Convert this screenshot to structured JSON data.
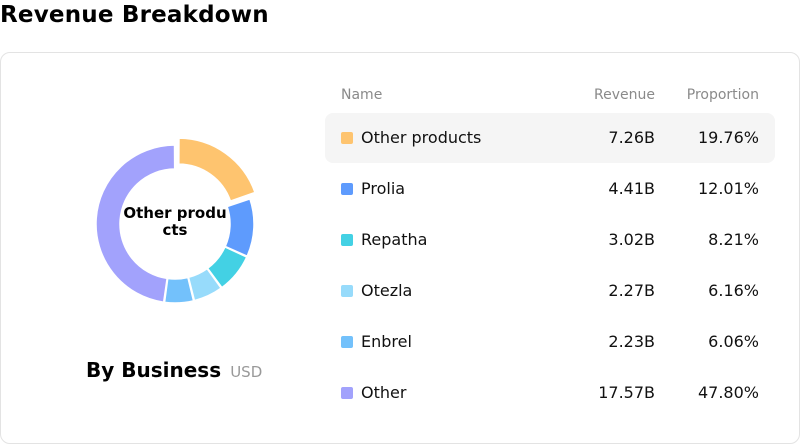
{
  "page": {
    "title": "Revenue Breakdown"
  },
  "chart": {
    "center_label": "Other products",
    "subtitle": "By Business",
    "unit": "USD"
  },
  "table": {
    "headers": {
      "name": "Name",
      "revenue": "Revenue",
      "proportion": "Proportion"
    },
    "rows": [
      {
        "name": "Other products",
        "revenue": "7.26B",
        "proportion": "19.76%",
        "color": "#fec46f",
        "active": true
      },
      {
        "name": "Prolia",
        "revenue": "4.41B",
        "proportion": "12.01%",
        "color": "#5e9bfd",
        "active": false
      },
      {
        "name": "Repatha",
        "revenue": "3.02B",
        "proportion": "8.21%",
        "color": "#43d1e4",
        "active": false
      },
      {
        "name": "Otezla",
        "revenue": "2.27B",
        "proportion": "6.16%",
        "color": "#97dbfb",
        "active": false
      },
      {
        "name": "Enbrel",
        "revenue": "2.23B",
        "proportion": "6.06%",
        "color": "#73c1fb",
        "active": false
      },
      {
        "name": "Other",
        "revenue": "17.57B",
        "proportion": "47.80%",
        "color": "#a2a2fc",
        "active": false
      }
    ]
  },
  "chart_data": {
    "type": "pie",
    "categories": [
      "Other products",
      "Prolia",
      "Repatha",
      "Otezla",
      "Enbrel",
      "Other"
    ],
    "values": [
      19.76,
      12.01,
      8.21,
      6.16,
      6.06,
      47.8
    ],
    "colors": [
      "#fec46f",
      "#5e9bfd",
      "#43d1e4",
      "#97dbfb",
      "#73c1fb",
      "#a2a2fc"
    ],
    "highlighted": "Other products",
    "donut": true
  }
}
